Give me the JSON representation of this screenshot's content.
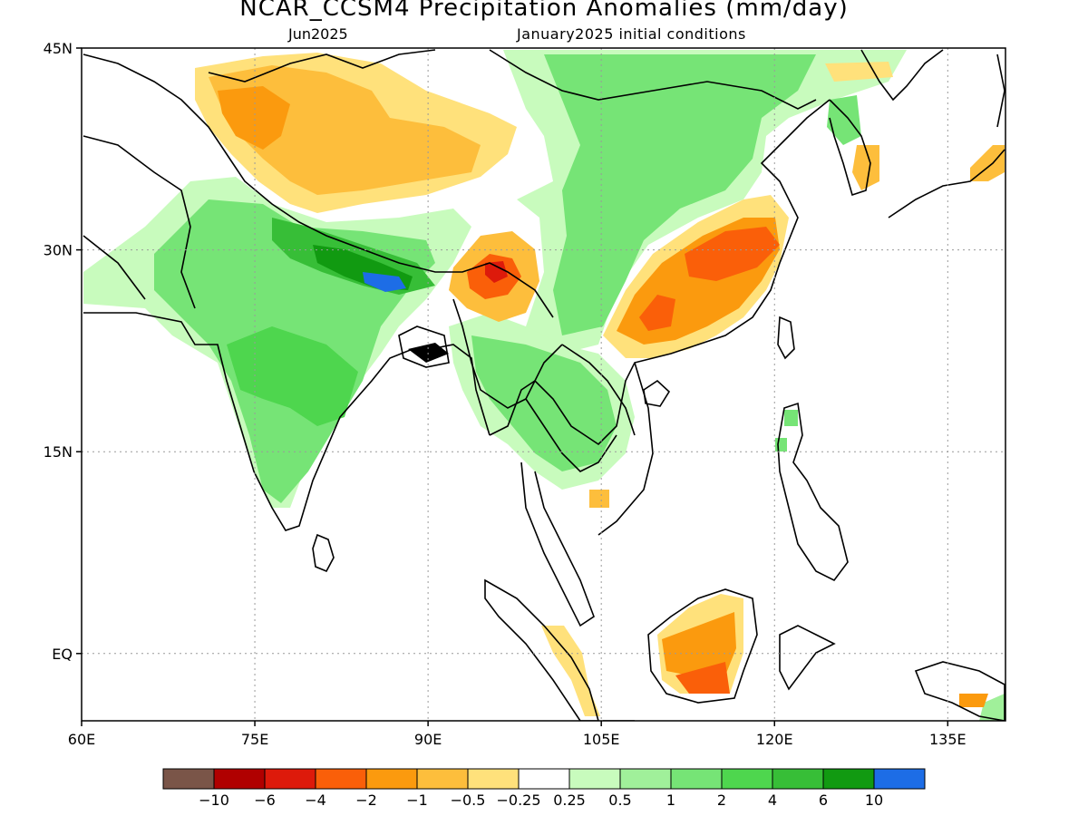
{
  "title": "NCAR_CCSM4 Precipitation Anomalies (mm/day)",
  "forecast_month": "Jun2025",
  "initial_conditions": "January2025 initial conditions",
  "map": {
    "lon_range": [
      60,
      140
    ],
    "lat_range": [
      -5,
      45
    ],
    "lat_ticks": [
      {
        "value": 45,
        "label": "45N"
      },
      {
        "value": 30,
        "label": "30N"
      },
      {
        "value": 15,
        "label": "15N"
      },
      {
        "value": 0,
        "label": "EQ"
      }
    ],
    "lon_ticks": [
      {
        "value": 60,
        "label": "60E"
      },
      {
        "value": 75,
        "label": "75E"
      },
      {
        "value": 90,
        "label": "90E"
      },
      {
        "value": 105,
        "label": "105E"
      },
      {
        "value": 120,
        "label": "120E"
      },
      {
        "value": 135,
        "label": "135E"
      }
    ]
  },
  "colorbar": {
    "colors": [
      "#7a5548",
      "#b00000",
      "#dd1a0b",
      "#fa5f09",
      "#fb9a0e",
      "#fdbe3c",
      "#ffe17b",
      "#ffffff",
      "#c8fbbd",
      "#a0f09a",
      "#76e476",
      "#4ed64e",
      "#37be37",
      "#119a11",
      "#1d6de6"
    ],
    "labels": [
      "-10",
      "-6",
      "-4",
      "-2",
      "-1",
      "-0.5",
      "-0.25",
      "0.25",
      "0.5",
      "1",
      "2",
      "4",
      "6",
      "10"
    ]
  },
  "palette": {
    "wet_weak": "#c8fbbd",
    "wet_light": "#a0f09a",
    "wet_moderate": "#76e476",
    "wet_strong": "#4ed64e",
    "wet_stronger": "#37be37",
    "wet_very_strong": "#119a11",
    "wet_extreme": "#1d6de6",
    "dry_weak": "#ffe17b",
    "dry_light": "#fdbe3c",
    "dry_moderate": "#fb9a0e",
    "dry_strong": "#fa5f09",
    "dry_stronger": "#dd1a0b",
    "coastline": "#000000",
    "grid": "#9a9a9a"
  }
}
